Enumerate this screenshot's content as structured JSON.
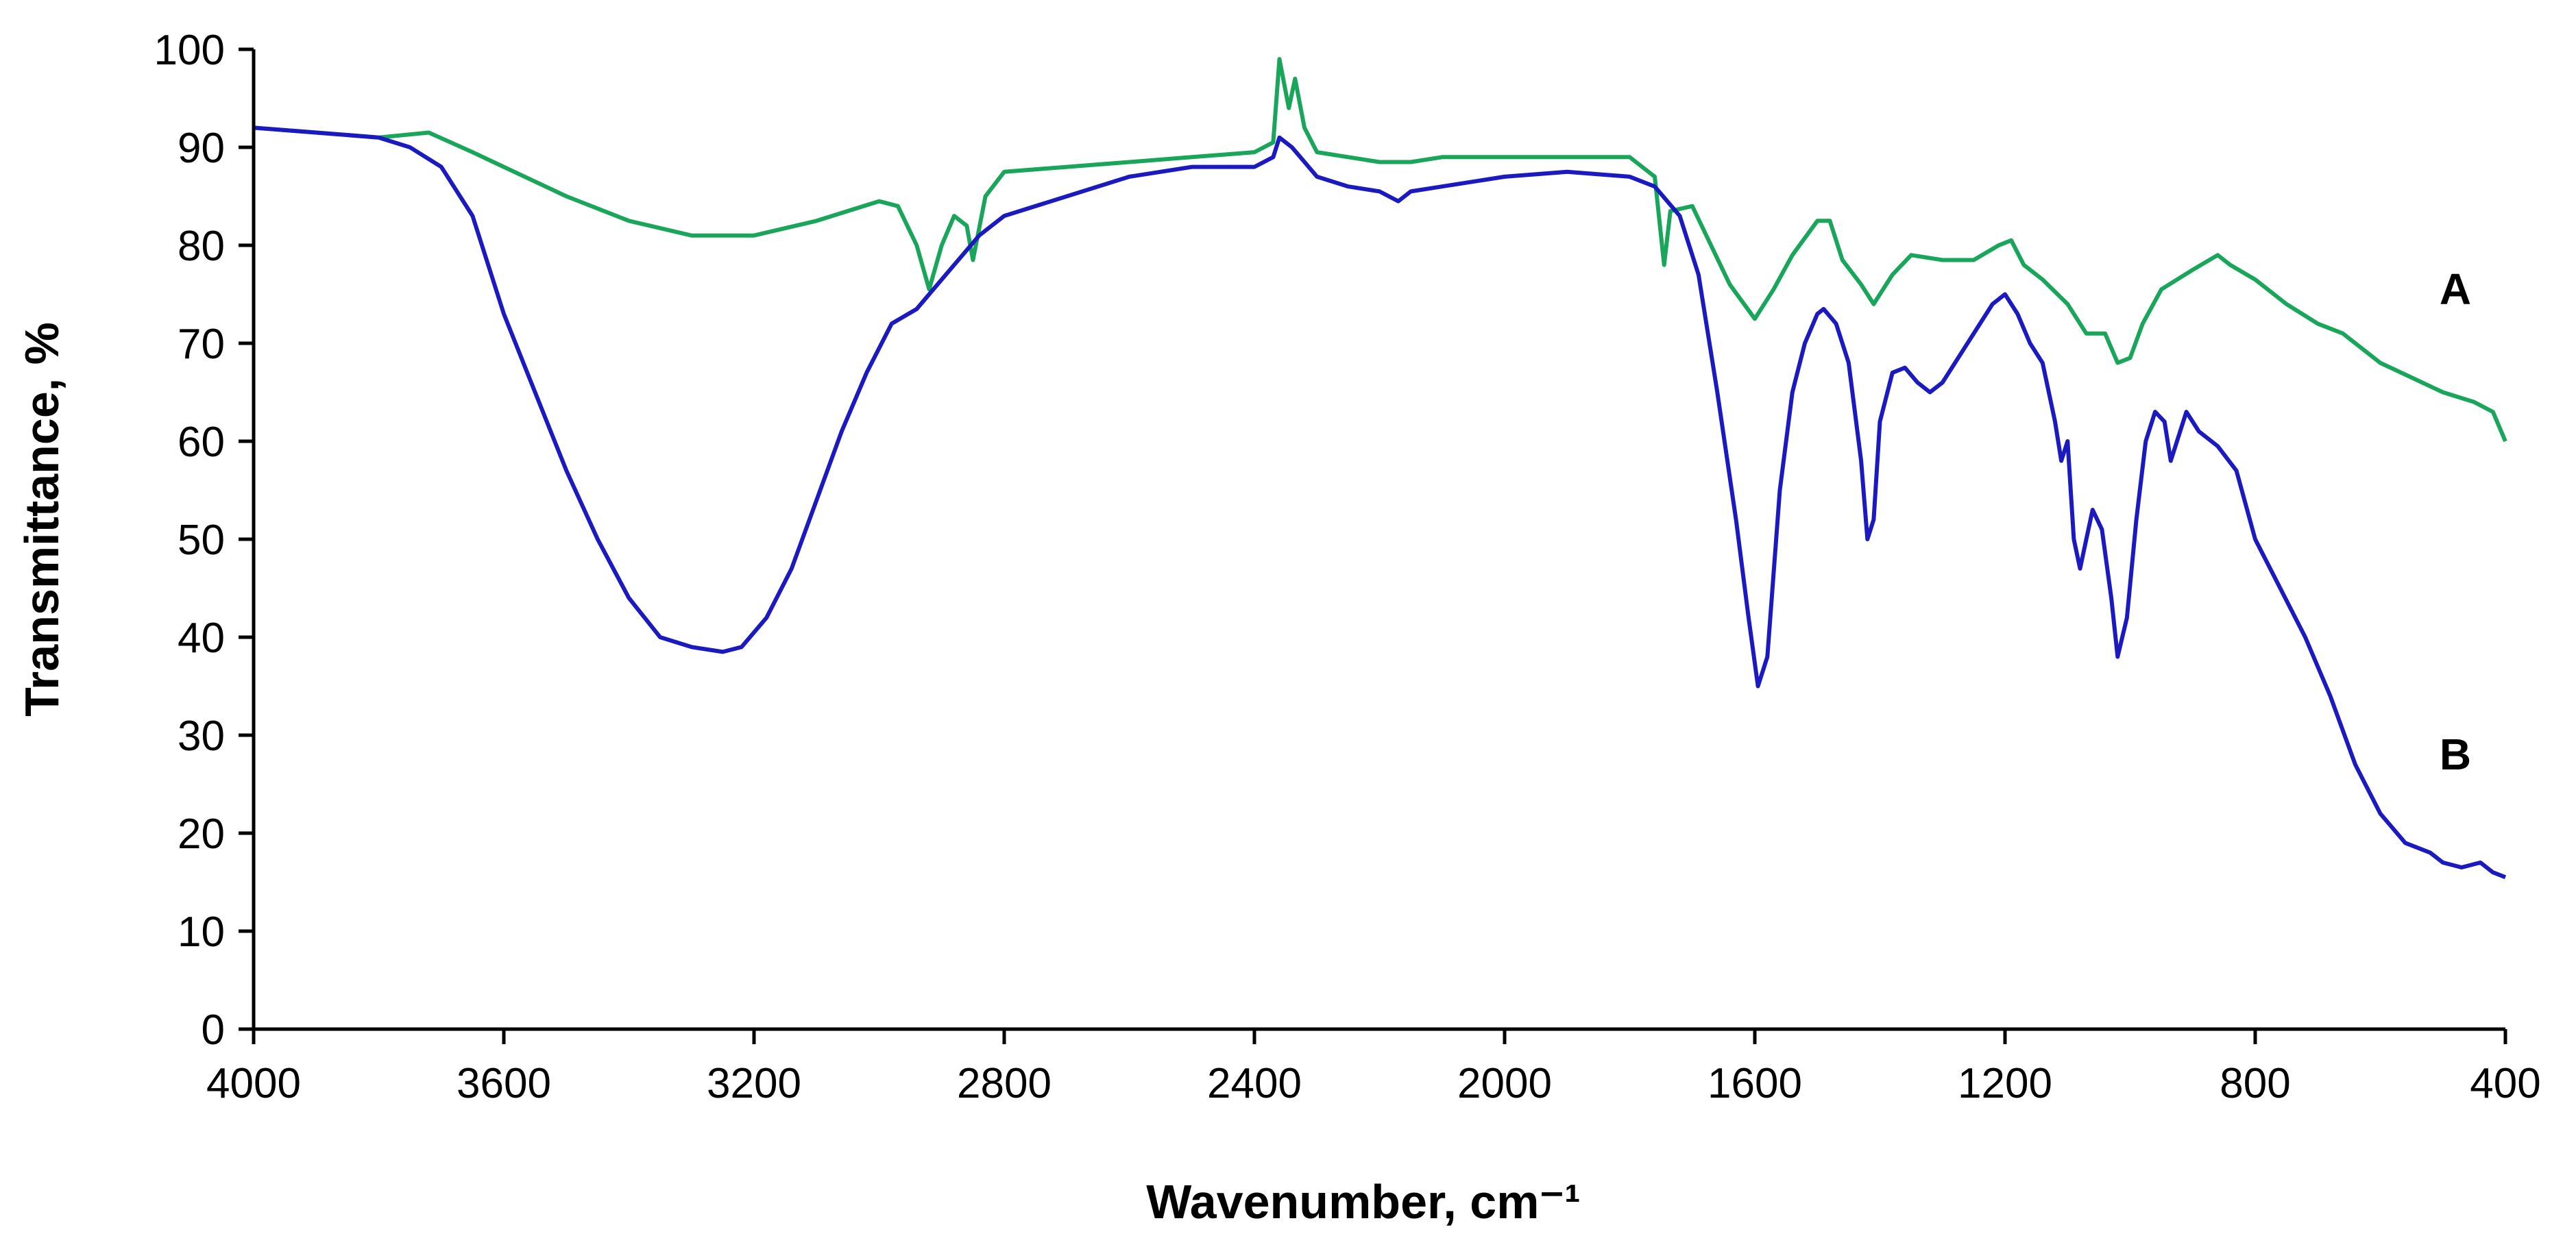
{
  "chart_data": {
    "type": "line",
    "title": "",
    "xlabel": "Wavenumber, cm⁻¹",
    "ylabel": "Transmittance, %",
    "xlim": [
      4000,
      400
    ],
    "ylim": [
      0,
      100
    ],
    "x_reversed": true,
    "x_ticks": [
      "4000",
      "3600",
      "3200",
      "2800",
      "2400",
      "2000",
      "1600",
      "1200",
      "800",
      "400"
    ],
    "y_ticks": [
      "0",
      "10",
      "20",
      "30",
      "40",
      "50",
      "60",
      "70",
      "80",
      "90",
      "100"
    ],
    "grid": false,
    "series": [
      {
        "name": "A",
        "color": "#1aa65a",
        "label_at": [
          480,
          74
        ],
        "points": [
          [
            4000,
            92
          ],
          [
            3900,
            91.5
          ],
          [
            3800,
            91
          ],
          [
            3720,
            91.5
          ],
          [
            3650,
            89.5
          ],
          [
            3600,
            88
          ],
          [
            3500,
            85
          ],
          [
            3400,
            82.5
          ],
          [
            3300,
            81
          ],
          [
            3200,
            81
          ],
          [
            3100,
            82.5
          ],
          [
            3000,
            84.5
          ],
          [
            2970,
            84
          ],
          [
            2940,
            80
          ],
          [
            2920,
            75.5
          ],
          [
            2900,
            80
          ],
          [
            2880,
            83
          ],
          [
            2860,
            82
          ],
          [
            2850,
            78.5
          ],
          [
            2830,
            85
          ],
          [
            2800,
            87.5
          ],
          [
            2700,
            88
          ],
          [
            2600,
            88.5
          ],
          [
            2500,
            89
          ],
          [
            2400,
            89.5
          ],
          [
            2370,
            90.5
          ],
          [
            2360,
            99
          ],
          [
            2345,
            94
          ],
          [
            2335,
            97
          ],
          [
            2320,
            92
          ],
          [
            2300,
            89.5
          ],
          [
            2250,
            89
          ],
          [
            2200,
            88.5
          ],
          [
            2150,
            88.5
          ],
          [
            2100,
            89
          ],
          [
            2000,
            89
          ],
          [
            1900,
            89
          ],
          [
            1800,
            89
          ],
          [
            1760,
            87
          ],
          [
            1745,
            78
          ],
          [
            1735,
            83.5
          ],
          [
            1700,
            84
          ],
          [
            1670,
            80
          ],
          [
            1640,
            76
          ],
          [
            1600,
            72.5
          ],
          [
            1570,
            75.5
          ],
          [
            1540,
            79
          ],
          [
            1500,
            82.5
          ],
          [
            1480,
            82.5
          ],
          [
            1460,
            78.5
          ],
          [
            1430,
            76
          ],
          [
            1410,
            74
          ],
          [
            1380,
            77
          ],
          [
            1350,
            79
          ],
          [
            1300,
            78.5
          ],
          [
            1250,
            78.5
          ],
          [
            1210,
            80
          ],
          [
            1190,
            80.5
          ],
          [
            1170,
            78
          ],
          [
            1140,
            76.5
          ],
          [
            1100,
            74
          ],
          [
            1070,
            71
          ],
          [
            1040,
            71
          ],
          [
            1020,
            68
          ],
          [
            1000,
            68.5
          ],
          [
            980,
            72
          ],
          [
            950,
            75.5
          ],
          [
            900,
            77.5
          ],
          [
            860,
            79
          ],
          [
            840,
            78
          ],
          [
            800,
            76.5
          ],
          [
            750,
            74
          ],
          [
            700,
            72
          ],
          [
            660,
            71
          ],
          [
            600,
            68
          ],
          [
            550,
            66.5
          ],
          [
            500,
            65
          ],
          [
            450,
            64
          ],
          [
            420,
            63
          ],
          [
            400,
            60
          ]
        ]
      },
      {
        "name": "B",
        "color": "#1a1ac0",
        "label_at": [
          480,
          26.5
        ],
        "points": [
          [
            4000,
            92
          ],
          [
            3900,
            91.5
          ],
          [
            3800,
            91
          ],
          [
            3750,
            90
          ],
          [
            3700,
            88
          ],
          [
            3650,
            83
          ],
          [
            3600,
            73
          ],
          [
            3550,
            65
          ],
          [
            3500,
            57
          ],
          [
            3450,
            50
          ],
          [
            3400,
            44
          ],
          [
            3350,
            40
          ],
          [
            3300,
            39
          ],
          [
            3250,
            38.5
          ],
          [
            3220,
            39
          ],
          [
            3180,
            42
          ],
          [
            3140,
            47
          ],
          [
            3100,
            54
          ],
          [
            3060,
            61
          ],
          [
            3020,
            67
          ],
          [
            2980,
            72
          ],
          [
            2940,
            73.5
          ],
          [
            2920,
            75
          ],
          [
            2880,
            78
          ],
          [
            2840,
            81
          ],
          [
            2800,
            83
          ],
          [
            2700,
            85
          ],
          [
            2600,
            87
          ],
          [
            2500,
            88
          ],
          [
            2400,
            88
          ],
          [
            2370,
            89
          ],
          [
            2360,
            91
          ],
          [
            2340,
            90
          ],
          [
            2300,
            87
          ],
          [
            2250,
            86
          ],
          [
            2200,
            85.5
          ],
          [
            2170,
            84.5
          ],
          [
            2150,
            85.5
          ],
          [
            2100,
            86
          ],
          [
            2000,
            87
          ],
          [
            1900,
            87.5
          ],
          [
            1800,
            87
          ],
          [
            1760,
            86
          ],
          [
            1720,
            83
          ],
          [
            1690,
            77
          ],
          [
            1660,
            65
          ],
          [
            1630,
            52
          ],
          [
            1610,
            42
          ],
          [
            1595,
            35
          ],
          [
            1580,
            38
          ],
          [
            1560,
            55
          ],
          [
            1540,
            65
          ],
          [
            1520,
            70
          ],
          [
            1500,
            73
          ],
          [
            1490,
            73.5
          ],
          [
            1470,
            72
          ],
          [
            1450,
            68
          ],
          [
            1430,
            58
          ],
          [
            1420,
            50
          ],
          [
            1410,
            52
          ],
          [
            1400,
            62
          ],
          [
            1380,
            67
          ],
          [
            1360,
            67.5
          ],
          [
            1340,
            66
          ],
          [
            1320,
            65
          ],
          [
            1300,
            66
          ],
          [
            1260,
            70
          ],
          [
            1220,
            74
          ],
          [
            1200,
            75
          ],
          [
            1180,
            73
          ],
          [
            1160,
            70
          ],
          [
            1140,
            68
          ],
          [
            1120,
            62
          ],
          [
            1110,
            58
          ],
          [
            1100,
            60
          ],
          [
            1090,
            50
          ],
          [
            1080,
            47
          ],
          [
            1070,
            50
          ],
          [
            1060,
            53
          ],
          [
            1045,
            51
          ],
          [
            1030,
            44
          ],
          [
            1020,
            38
          ],
          [
            1005,
            42
          ],
          [
            990,
            52
          ],
          [
            975,
            60
          ],
          [
            960,
            63
          ],
          [
            945,
            62
          ],
          [
            935,
            58
          ],
          [
            925,
            60
          ],
          [
            910,
            63
          ],
          [
            890,
            61
          ],
          [
            860,
            59.5
          ],
          [
            830,
            57
          ],
          [
            800,
            50
          ],
          [
            760,
            45
          ],
          [
            720,
            40
          ],
          [
            680,
            34
          ],
          [
            640,
            27
          ],
          [
            600,
            22
          ],
          [
            560,
            19
          ],
          [
            520,
            18
          ],
          [
            500,
            17
          ],
          [
            470,
            16.5
          ],
          [
            440,
            17
          ],
          [
            420,
            16
          ],
          [
            400,
            15.5
          ]
        ]
      }
    ]
  }
}
